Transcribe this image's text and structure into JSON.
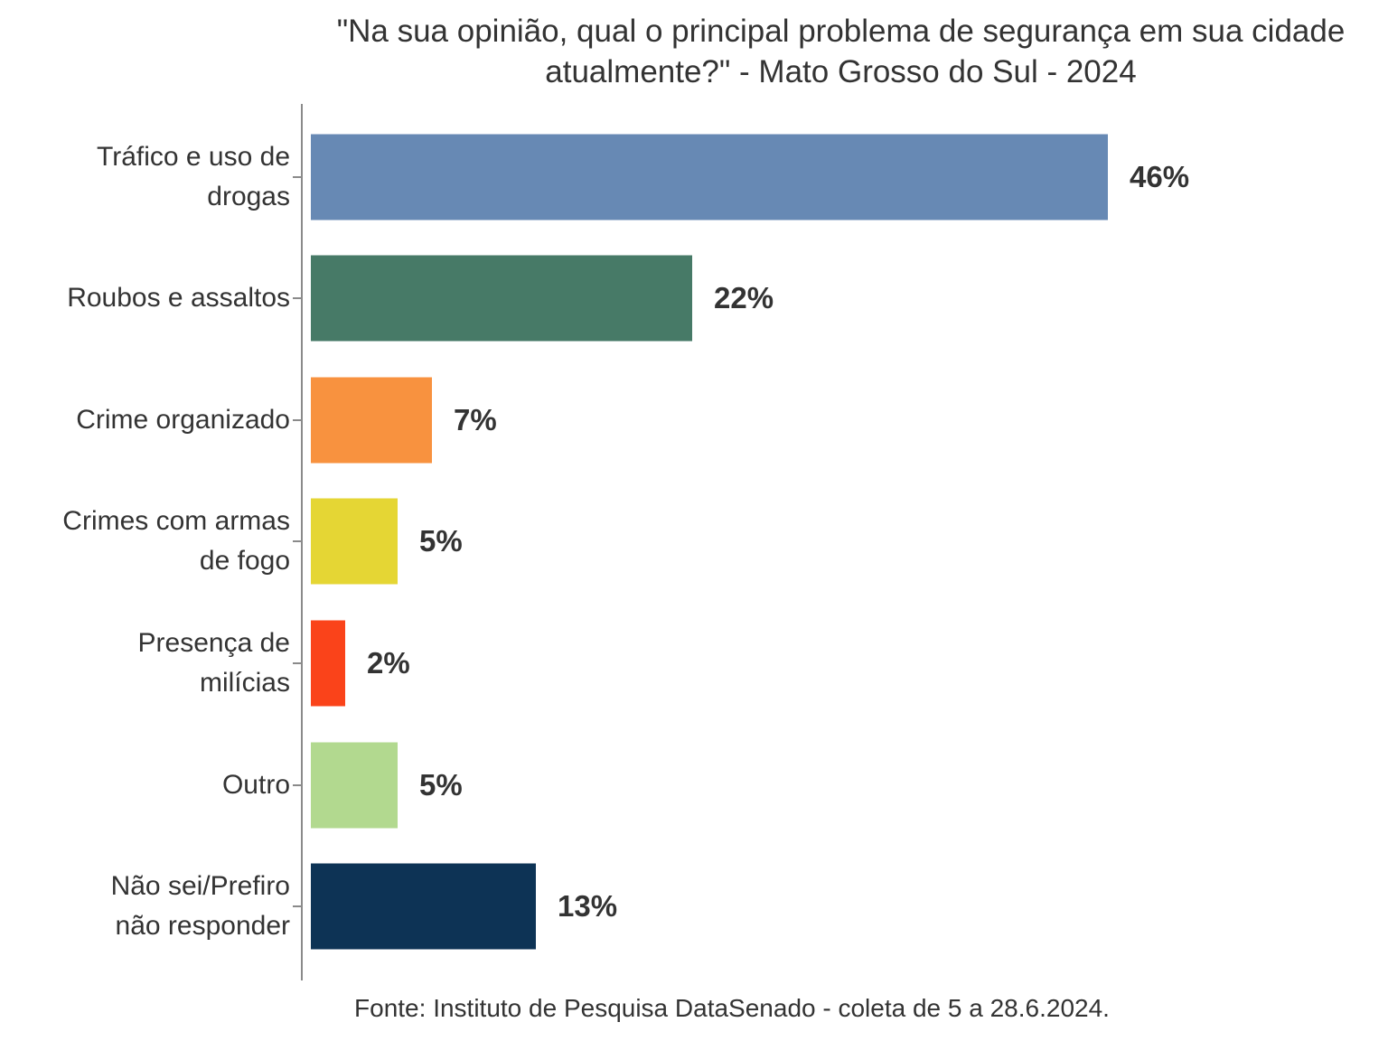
{
  "title": "\"Na sua opinião, qual o principal problema de segurança em sua cidade atualmente?\" - Mato Grosso do Sul - 2024",
  "source": "Fonte: Instituto de Pesquisa DataSenado - coleta de 5 a 28.6.2024.",
  "colors": {
    "text": "#333333",
    "axis": "#8a8a8a",
    "background": "#ffffff"
  },
  "chart_data": {
    "type": "bar",
    "orientation": "horizontal",
    "title": "\"Na sua opinião, qual o principal problema de segurança em sua cidade atualmente?\" - Mato Grosso do Sul - 2024",
    "caption": "Fonte: Instituto de Pesquisa DataSenado - coleta de 5 a 28.6.2024.",
    "xlabel": "",
    "ylabel": "",
    "xlim": [
      0,
      50
    ],
    "grid": false,
    "legend": false,
    "value_suffix": "%",
    "categories": [
      "Tráfico e uso de drogas",
      "Roubos e assaltos",
      "Crime organizado",
      "Crimes com armas de fogo",
      "Presença de milícias",
      "Outro",
      "Não sei/Prefiro não responder"
    ],
    "values": [
      46,
      22,
      7,
      5,
      2,
      5,
      13
    ],
    "bars": [
      {
        "label": "Tráfico e uso de drogas",
        "label_lines": [
          "Tráfico e uso de",
          "drogas"
        ],
        "value": 46,
        "display": "46%",
        "color": "#6789b4"
      },
      {
        "label": "Roubos e assaltos",
        "label_lines": [
          "Roubos e assaltos"
        ],
        "value": 22,
        "display": "22%",
        "color": "#477a67"
      },
      {
        "label": "Crime organizado",
        "label_lines": [
          "Crime organizado"
        ],
        "value": 7,
        "display": "7%",
        "color": "#f8923f"
      },
      {
        "label": "Crimes com armas de fogo",
        "label_lines": [
          "Crimes com armas",
          "de fogo"
        ],
        "value": 5,
        "display": "5%",
        "color": "#e5d634"
      },
      {
        "label": "Presença de milícias",
        "label_lines": [
          "Presença de",
          "milícias"
        ],
        "value": 2,
        "display": "2%",
        "color": "#fa431a"
      },
      {
        "label": "Outro",
        "label_lines": [
          "Outro"
        ],
        "value": 5,
        "display": "5%",
        "color": "#b2d98f"
      },
      {
        "label": "Não sei/Prefiro não responder",
        "label_lines": [
          "Não sei/Prefiro",
          "não responder"
        ],
        "value": 13,
        "display": "13%",
        "color": "#0d3355"
      }
    ]
  }
}
